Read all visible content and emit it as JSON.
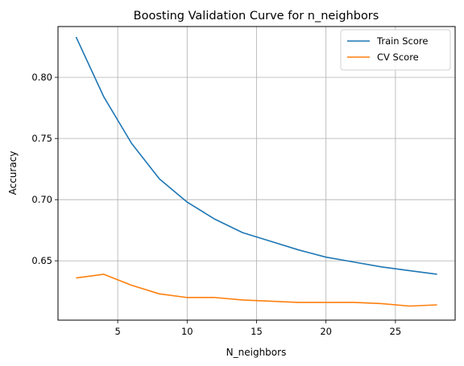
{
  "chart_data": {
    "type": "line",
    "title": "Boosting Validation Curve for n_neighbors",
    "xlabel": "N_neighbors",
    "ylabel": "Accuracy",
    "xlim": [
      0.7,
      29.3
    ],
    "ylim": [
      0.6015,
      0.8415
    ],
    "xticks": [
      5,
      10,
      15,
      20,
      25
    ],
    "yticks": [
      0.65,
      0.7,
      0.75,
      0.8
    ],
    "ytick_labels": [
      "0.65",
      "0.70",
      "0.75",
      "0.80"
    ],
    "grid": true,
    "legend_position": "top-right",
    "x": [
      2,
      4,
      6,
      8,
      10,
      12,
      14,
      16,
      18,
      20,
      22,
      24,
      26,
      28
    ],
    "series": [
      {
        "name": "Train Score",
        "color": "#1f77b4",
        "values": [
          0.833,
          0.784,
          0.746,
          0.717,
          0.698,
          0.684,
          0.673,
          0.666,
          0.659,
          0.653,
          0.649,
          0.645,
          0.642,
          0.639
        ]
      },
      {
        "name": "CV Score",
        "color": "#ff7f0e",
        "values": [
          0.636,
          0.639,
          0.63,
          0.623,
          0.62,
          0.62,
          0.618,
          0.617,
          0.616,
          0.616,
          0.616,
          0.615,
          0.613,
          0.614
        ]
      }
    ]
  }
}
